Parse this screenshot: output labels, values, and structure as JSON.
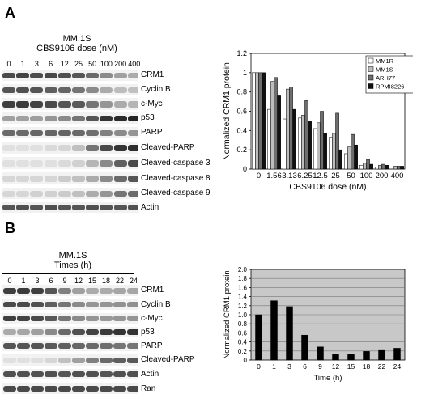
{
  "panelA": {
    "letter": "A",
    "cell_line": "MM.1S",
    "dose_title": "CBS9106 dose (nM)",
    "doses": [
      "0",
      "1",
      "3",
      "6",
      "12",
      "25",
      "50",
      "100",
      "200",
      "400"
    ],
    "blots": [
      "CRM1",
      "Cyclin B",
      "c-Myc",
      "p53",
      "PARP",
      "Cleaved-PARP",
      "Cleaved-caspase 3",
      "Cleaved-caspase 8",
      "Cleaved-caspase 9",
      "Actin"
    ]
  },
  "panelB": {
    "letter": "B",
    "cell_line": "MM.1S",
    "time_title": "Times (h)",
    "times": [
      "0",
      "1",
      "3",
      "6",
      "9",
      "12",
      "15",
      "18",
      "22",
      "24"
    ],
    "blots": [
      "CRM1",
      "Cyclin B",
      "c-Myc",
      "p53",
      "PARP",
      "Cleaved-PARP",
      "Actin",
      "Ran"
    ]
  },
  "chart_data": [
    {
      "type": "bar",
      "categories": [
        "0",
        "1.56",
        "3.13",
        "6.25",
        "12.5",
        "25",
        "50",
        "100",
        "200",
        "400"
      ],
      "series": [
        {
          "name": "MM1R",
          "values": [
            1.0,
            0.62,
            0.52,
            0.53,
            0.42,
            0.33,
            0.16,
            0.04,
            0.02,
            0.0
          ]
        },
        {
          "name": "MM1S",
          "values": [
            1.0,
            0.91,
            0.83,
            0.56,
            0.48,
            0.37,
            0.23,
            0.06,
            0.04,
            0.03
          ]
        },
        {
          "name": "ARH77",
          "values": [
            1.0,
            0.95,
            0.85,
            0.71,
            0.6,
            0.58,
            0.36,
            0.1,
            0.05,
            0.03
          ]
        },
        {
          "name": "RPMI8226",
          "values": [
            1.0,
            0.76,
            0.62,
            0.5,
            0.37,
            0.2,
            0.25,
            0.05,
            0.04,
            0.03
          ]
        }
      ],
      "colors": [
        "#ffffff",
        "#bdbdbd",
        "#6e6e6e",
        "#111111"
      ],
      "xlabel": "CBS9106 dose (nM)",
      "ylabel": "Normalized CRM1 protein",
      "ylim": [
        0,
        1.2
      ],
      "yticks": [
        "0",
        "0.2",
        "0.4",
        "0.6",
        "0.8",
        "1",
        "1.2"
      ],
      "legend": "top-right",
      "grid": false,
      "background": "#ffffff"
    },
    {
      "type": "bar",
      "categories": [
        "0",
        "1",
        "3",
        "6",
        "9",
        "12",
        "15",
        "18",
        "22",
        "24"
      ],
      "series": [
        {
          "values": [
            1.0,
            1.31,
            1.18,
            0.55,
            0.29,
            0.12,
            0.12,
            0.19,
            0.23,
            0.26
          ]
        }
      ],
      "colors": [
        "#000000"
      ],
      "xlabel": "Time (h)",
      "ylabel": "Normalized CRM1 protein",
      "ylim": [
        0,
        2.0
      ],
      "yticks": [
        "0",
        "0.2",
        "0.4",
        "0.6",
        "0.8",
        "1.0",
        "1.2",
        "1.4",
        "1.6",
        "1.8",
        "2.0"
      ],
      "legend": "none",
      "grid": true,
      "background": "#c8c8c8"
    }
  ]
}
